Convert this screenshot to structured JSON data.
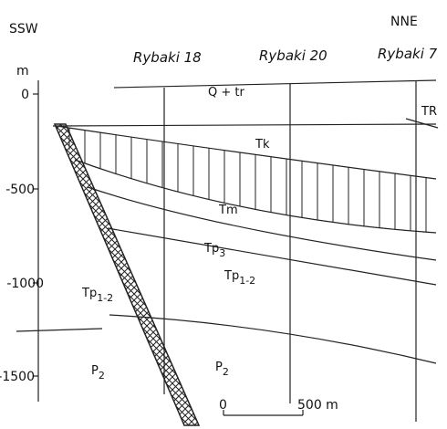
{
  "header": {
    "left": "SSW",
    "right": "NNE"
  },
  "wells": [
    "Rybaki 18",
    "Rybaki 20",
    "Rybaki 7"
  ],
  "axis": {
    "unit": "m",
    "ticks": [
      "0",
      "-500",
      "-1000",
      "-1500"
    ]
  },
  "units": [
    {
      "main": "Q + tr"
    },
    {
      "main": "TR"
    },
    {
      "main": "Tk"
    },
    {
      "main": "Tm"
    },
    {
      "main": "Tp",
      "sub": "3"
    },
    {
      "main": "Tp",
      "sub": "1-2"
    },
    {
      "main": "Tp",
      "sub": "1-2"
    },
    {
      "main": "P",
      "sub": "2"
    },
    {
      "main": "P",
      "sub": "2"
    }
  ],
  "scale_bar": {
    "start": "0",
    "end": "500 m"
  }
}
